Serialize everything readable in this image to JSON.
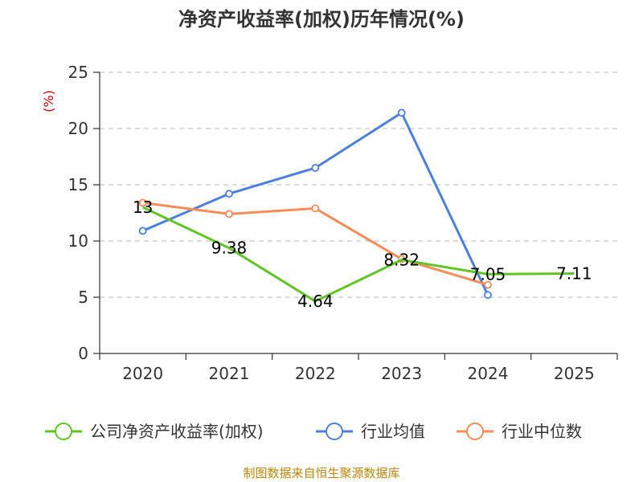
{
  "chart_data": {
    "type": "line",
    "title": "净资产收益率(加权)历年情况(%)",
    "ylabel": "(%)",
    "xlabel": "",
    "categories": [
      "2020",
      "2021",
      "2022",
      "2023",
      "2024",
      "2025"
    ],
    "ylim": [
      0,
      25
    ],
    "yticks": [
      0,
      5,
      10,
      15,
      20,
      25
    ],
    "grid": true,
    "legend_position": "bottom",
    "series": [
      {
        "name": "公司净资产收益率(加权)",
        "color": "#5fc424",
        "values": [
          13,
          9.38,
          4.64,
          8.32,
          7.05,
          7.11
        ],
        "labels": [
          "13",
          "9.38",
          "4.64",
          "8.32",
          "7.05",
          "7.11"
        ]
      },
      {
        "name": "行业均值",
        "color": "#4d7fdc",
        "values": [
          10.9,
          14.2,
          16.5,
          21.4,
          5.2,
          null
        ]
      },
      {
        "name": "行业中位数",
        "color": "#f68c57",
        "values": [
          13.4,
          12.4,
          12.9,
          8.4,
          6.1,
          null
        ]
      }
    ]
  },
  "footer": {
    "source_text": "制图数据来自恒生聚源数据库"
  }
}
